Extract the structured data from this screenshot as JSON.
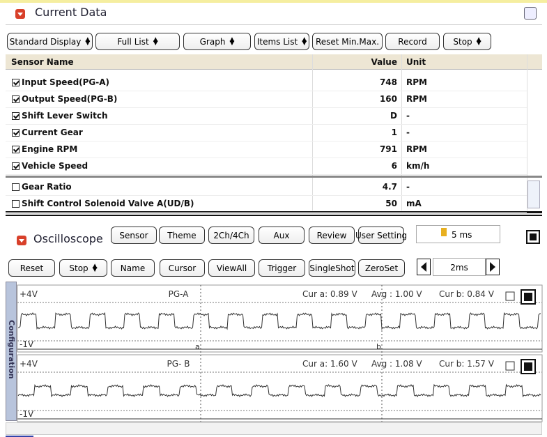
{
  "current_data": {
    "title": "Current Data",
    "toolbar": [
      {
        "label": "Standard Display",
        "dropdown": true
      },
      {
        "label": "Full List",
        "dropdown": true
      },
      {
        "label": "Graph",
        "dropdown": true
      },
      {
        "label": "Items List",
        "dropdown": true
      },
      {
        "label": "Reset Min.Max.",
        "dropdown": false
      },
      {
        "label": "Record",
        "dropdown": false
      },
      {
        "label": "Stop",
        "dropdown": true
      }
    ],
    "table": {
      "columns": [
        "Sensor Name",
        "Value",
        "Unit"
      ],
      "rows": [
        {
          "name": "Input Speed(PG-A)",
          "value": 748,
          "unit": "RPM",
          "checked": true
        },
        {
          "name": "Output Speed(PG-B)",
          "value": 160,
          "unit": "RPM",
          "checked": true
        },
        {
          "name": "Shift Lever Switch",
          "value": "D",
          "unit": "-",
          "checked": true
        },
        {
          "name": "Current Gear",
          "value": 1,
          "unit": "-",
          "checked": true
        },
        {
          "name": "Engine RPM",
          "value": 791,
          "unit": "RPM",
          "checked": true
        },
        {
          "name": "Vehicle Speed",
          "value": 6,
          "unit": "km/h",
          "checked": true
        },
        {
          "name": "Gear Ratio",
          "value": 4.7,
          "unit": "-",
          "checked": false
        },
        {
          "name": "Shift Control Solenoid Valve A(UD/B)",
          "value": 50,
          "unit": "mA",
          "checked": false
        }
      ]
    }
  },
  "oscilloscope": {
    "title": "Oscilloscope",
    "buttons": [
      {
        "label": "Sensor"
      },
      {
        "label": "Theme"
      },
      {
        "label": "2Ch/4Ch"
      },
      {
        "label": "Aux"
      },
      {
        "label": "Review"
      },
      {
        "label": "User Setting"
      }
    ],
    "time_div": "5 ms",
    "controls": [
      {
        "label": "Reset",
        "dropdown": false
      },
      {
        "label": "Stop",
        "dropdown": true
      },
      {
        "label": "Name",
        "dropdown": false
      },
      {
        "label": "Cursor",
        "dropdown": false
      },
      {
        "label": "ViewAll",
        "dropdown": false
      },
      {
        "label": "Trigger",
        "dropdown": false
      },
      {
        "label": "SingleShot",
        "dropdown": false
      },
      {
        "label": "ZeroSet",
        "dropdown": false
      }
    ],
    "zoom": "2ms",
    "side_tab": "Configuration",
    "cursors": [
      "a",
      "b"
    ],
    "channels": [
      {
        "name": "PG-A",
        "top": "+4V",
        "bottom": "-1V",
        "cur_a": "Cur a: 0.89 V",
        "avg": "Avg : 1.00 V",
        "cur_b": "Cur b: 0.84 V"
      },
      {
        "name": "PG- B",
        "top": "+4V",
        "bottom": "-1V",
        "cur_a": "Cur a: 1.60 V",
        "avg": "Avg : 1.08 V",
        "cur_b": "Cur b: 1.57 V"
      }
    ]
  }
}
